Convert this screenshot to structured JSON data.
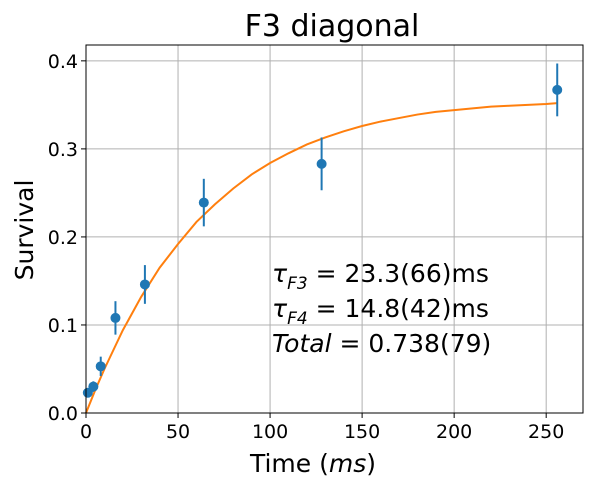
{
  "chart_data": {
    "type": "scatter",
    "title": "F3 diagonal",
    "xlabel": {
      "text": "Time ",
      "math": "ms"
    },
    "ylabel": "Survival",
    "xlim": [
      0,
      270
    ],
    "ylim": [
      0,
      0.418
    ],
    "xticks": [
      0,
      50,
      100,
      150,
      200,
      250
    ],
    "yticks": [
      0.0,
      0.1,
      0.2,
      0.3,
      0.4
    ],
    "xtick_labels": [
      "0",
      "50",
      "100",
      "150",
      "200",
      "250"
    ],
    "ytick_labels": [
      "0.0",
      "0.1",
      "0.2",
      "0.3",
      "0.4"
    ],
    "grid": true,
    "series": [
      {
        "kind": "errorbar",
        "color": "#1f77b4",
        "points": [
          {
            "x": 1,
            "y": 0.023,
            "err": 0.004
          },
          {
            "x": 4,
            "y": 0.03,
            "err": 0.006
          },
          {
            "x": 8,
            "y": 0.053,
            "err": 0.011
          },
          {
            "x": 16,
            "y": 0.108,
            "err": 0.019
          },
          {
            "x": 32,
            "y": 0.146,
            "err": 0.022
          },
          {
            "x": 64,
            "y": 0.239,
            "err": 0.027
          },
          {
            "x": 128,
            "y": 0.283,
            "err": 0.03
          },
          {
            "x": 256,
            "y": 0.367,
            "err": 0.03
          }
        ]
      },
      {
        "kind": "fit",
        "color": "#ff7f0e",
        "x": [
          0,
          5,
          10,
          20,
          30,
          40,
          50,
          60,
          70,
          80,
          90,
          100,
          110,
          120,
          130,
          140,
          150,
          160,
          170,
          180,
          190,
          200,
          210,
          220,
          230,
          240,
          250,
          256
        ],
        "y": [
          0.0,
          0.026,
          0.05,
          0.094,
          0.132,
          0.165,
          0.192,
          0.217,
          0.237,
          0.255,
          0.271,
          0.284,
          0.295,
          0.305,
          0.313,
          0.32,
          0.326,
          0.331,
          0.335,
          0.339,
          0.342,
          0.344,
          0.346,
          0.348,
          0.349,
          0.35,
          0.351,
          0.352
        ]
      }
    ],
    "annotations": [
      {
        "sym": "τ",
        "sub": "F3",
        "value": " = 23.3(66)ms"
      },
      {
        "sym": "τ",
        "sub": "F4",
        "value": " = 14.8(42)ms"
      },
      {
        "sym": "Total",
        "sub": "",
        "value": " = 0.738(79)"
      }
    ]
  }
}
